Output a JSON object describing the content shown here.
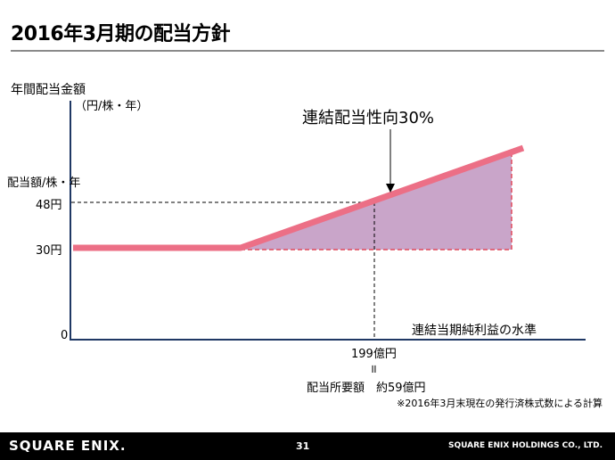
{
  "title": "2016年3月期の配当方針",
  "y_axis": {
    "label_line1": "年間配当金額",
    "label_line2": "（円/株・年）",
    "dividend_label": "配当額/株・年",
    "tick_48": "48円",
    "tick_30": "30円",
    "origin": "0"
  },
  "x_axis": {
    "label": "連結当期純利益の水準",
    "threshold_value": "199億円",
    "equals_mark": "॥",
    "required_amount": "配当所要額　約59億円"
  },
  "callout": "連結配当性向30%",
  "footnote": "※2016年3月末現在の発行済株式数による計算",
  "footer": {
    "logo": "SQUARE ENIX.",
    "page": "31",
    "company": "SQUARE ENIX HOLDINGS CO., LTD."
  },
  "colors": {
    "line": "#ec6f86",
    "fill": "#c9a5c9",
    "axis": "#1f3864"
  }
}
